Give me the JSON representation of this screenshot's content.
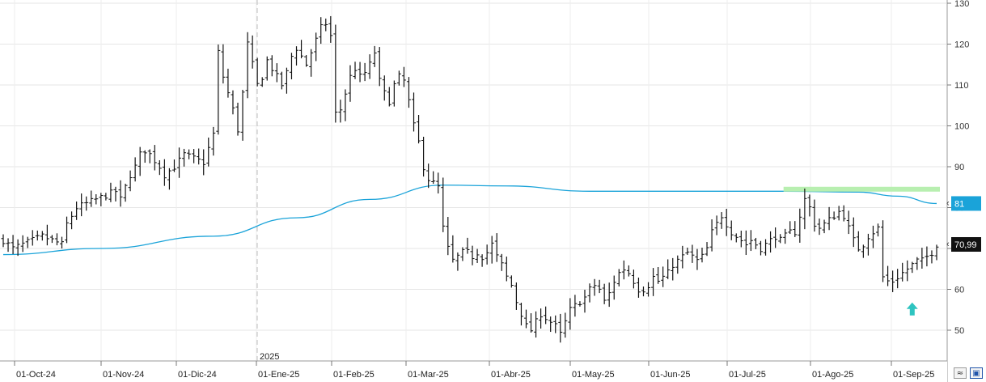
{
  "chart_data": {
    "type": "ohlc",
    "year_marker": "2025",
    "ylim": [
      45,
      130
    ],
    "yticks": [
      50,
      60,
      70,
      80,
      90,
      100,
      110,
      120,
      130
    ],
    "x_ticks": [
      "01-Oct-24",
      "01-Nov-24",
      "01-Dic-24",
      "01-Ene-25",
      "01-Feb-25",
      "01-Mar-25",
      "01-Abr-25",
      "01-May-25",
      "01-Jun-25",
      "01-Jul-25",
      "01-Ago-25",
      "01-Sep-25"
    ],
    "price_path": [
      [
        0,
        72
      ],
      [
        2,
        70
      ],
      [
        4,
        71
      ],
      [
        6,
        72
      ],
      [
        8,
        73
      ],
      [
        10,
        72
      ],
      [
        12,
        71
      ],
      [
        13,
        76
      ],
      [
        15,
        80
      ],
      [
        17,
        81
      ],
      [
        19,
        82
      ],
      [
        21,
        83
      ],
      [
        23,
        84
      ],
      [
        24,
        82
      ],
      [
        25,
        85
      ],
      [
        26,
        88
      ],
      [
        27,
        90
      ],
      [
        28,
        93
      ],
      [
        29,
        94
      ],
      [
        30,
        93
      ],
      [
        32,
        90
      ],
      [
        33,
        88
      ],
      [
        35,
        90
      ],
      [
        37,
        93
      ],
      [
        39,
        92
      ],
      [
        41,
        91
      ],
      [
        43,
        98
      ],
      [
        44,
        118
      ],
      [
        45,
        112
      ],
      [
        46,
        108
      ],
      [
        47,
        104
      ],
      [
        48,
        99
      ],
      [
        49,
        108
      ],
      [
        50,
        120
      ],
      [
        51,
        115
      ],
      [
        52,
        110
      ],
      [
        53,
        112
      ],
      [
        54,
        116
      ],
      [
        55,
        114
      ],
      [
        56,
        112
      ],
      [
        57,
        110
      ],
      [
        58,
        113
      ],
      [
        59,
        117
      ],
      [
        60,
        119
      ],
      [
        61,
        117
      ],
      [
        62,
        115
      ],
      [
        63,
        118
      ],
      [
        64,
        121
      ],
      [
        65,
        124
      ],
      [
        66,
        125
      ],
      [
        67,
        122
      ],
      [
        68,
        103
      ],
      [
        69,
        104
      ],
      [
        70,
        108
      ],
      [
        71,
        112
      ],
      [
        72,
        114
      ],
      [
        73,
        112
      ],
      [
        74,
        113
      ],
      [
        75,
        115
      ],
      [
        76,
        118
      ],
      [
        77,
        111
      ],
      [
        78,
        108
      ],
      [
        79,
        106
      ],
      [
        80,
        110
      ],
      [
        81,
        112
      ],
      [
        82,
        111
      ],
      [
        83,
        106
      ],
      [
        84,
        100
      ],
      [
        85,
        96
      ],
      [
        86,
        90
      ],
      [
        87,
        87
      ],
      [
        88,
        86
      ],
      [
        89,
        85
      ],
      [
        90,
        75
      ],
      [
        91,
        70
      ],
      [
        92,
        67
      ],
      [
        93,
        68
      ],
      [
        94,
        69
      ],
      [
        95,
        69
      ],
      [
        96,
        68
      ],
      [
        97,
        69
      ],
      [
        98,
        68
      ],
      [
        99,
        69
      ],
      [
        100,
        71
      ],
      [
        101,
        68
      ],
      [
        102,
        66
      ],
      [
        103,
        63
      ],
      [
        104,
        61
      ],
      [
        105,
        57
      ],
      [
        106,
        54
      ],
      [
        107,
        51
      ],
      [
        108,
        50
      ],
      [
        109,
        52
      ],
      [
        110,
        54
      ],
      [
        111,
        53
      ],
      [
        112,
        52
      ],
      [
        113,
        51
      ],
      [
        114,
        49
      ],
      [
        115,
        52
      ],
      [
        116,
        55
      ],
      [
        117,
        56
      ],
      [
        118,
        57
      ],
      [
        119,
        58
      ],
      [
        120,
        60
      ],
      [
        121,
        61
      ],
      [
        122,
        60
      ],
      [
        123,
        57
      ],
      [
        124,
        59
      ],
      [
        125,
        62
      ],
      [
        126,
        64
      ],
      [
        127,
        65
      ],
      [
        128,
        64
      ],
      [
        129,
        62
      ],
      [
        130,
        60
      ],
      [
        131,
        60
      ],
      [
        132,
        61
      ],
      [
        133,
        63
      ],
      [
        134,
        62
      ],
      [
        135,
        63
      ],
      [
        136,
        64
      ],
      [
        137,
        66
      ],
      [
        138,
        67
      ],
      [
        139,
        68
      ],
      [
        140,
        69
      ],
      [
        141,
        68
      ],
      [
        142,
        67
      ],
      [
        143,
        68
      ],
      [
        144,
        70
      ],
      [
        145,
        74
      ],
      [
        146,
        76
      ],
      [
        147,
        78
      ],
      [
        148,
        76
      ],
      [
        149,
        74
      ],
      [
        150,
        73
      ],
      [
        151,
        72
      ],
      [
        152,
        71
      ],
      [
        153,
        72
      ],
      [
        154,
        71
      ],
      [
        155,
        70
      ],
      [
        156,
        71
      ],
      [
        157,
        72
      ],
      [
        158,
        73
      ],
      [
        159,
        72
      ],
      [
        160,
        73
      ],
      [
        161,
        74
      ],
      [
        162,
        74
      ],
      [
        163,
        78
      ],
      [
        164,
        82
      ],
      [
        165,
        80
      ],
      [
        166,
        76
      ],
      [
        167,
        75
      ],
      [
        168,
        76
      ],
      [
        169,
        77
      ],
      [
        170,
        78
      ],
      [
        171,
        79
      ],
      [
        172,
        78
      ],
      [
        173,
        75
      ],
      [
        174,
        72
      ],
      [
        175,
        70
      ],
      [
        176,
        71
      ],
      [
        177,
        73
      ],
      [
        178,
        74
      ],
      [
        179,
        75
      ],
      [
        180,
        63
      ],
      [
        181,
        62
      ],
      [
        182,
        62
      ],
      [
        183,
        63
      ],
      [
        184,
        64
      ],
      [
        185,
        65
      ],
      [
        186,
        66
      ],
      [
        187,
        67
      ],
      [
        188,
        67
      ],
      [
        189,
        68
      ],
      [
        190,
        69
      ],
      [
        191,
        71
      ]
    ],
    "moving_average": {
      "color": "#1aa3d9",
      "points": [
        [
          0,
          68.5
        ],
        [
          20,
          70
        ],
        [
          43,
          73
        ],
        [
          60,
          77.5
        ],
        [
          75,
          82
        ],
        [
          90,
          85.5
        ],
        [
          103,
          85.3
        ],
        [
          120,
          84
        ],
        [
          140,
          84
        ],
        [
          160,
          84
        ],
        [
          175,
          83.8
        ],
        [
          183,
          82.8
        ],
        [
          191,
          81
        ]
      ]
    },
    "resistance_band": {
      "y": 84.5,
      "x_start": 160,
      "x_end": 192,
      "color": "#b8efb0"
    },
    "arrow_annotation": {
      "x": 186,
      "y": 55,
      "color": "#2ec4c0"
    },
    "price_badges": [
      {
        "label": "81",
        "value": 81,
        "bg": "#1aa3d9",
        "fg": "#ffffff"
      },
      {
        "label": "70,99",
        "value": 70.99,
        "bg": "#111111",
        "fg": "#ffffff"
      }
    ],
    "grid": true
  }
}
